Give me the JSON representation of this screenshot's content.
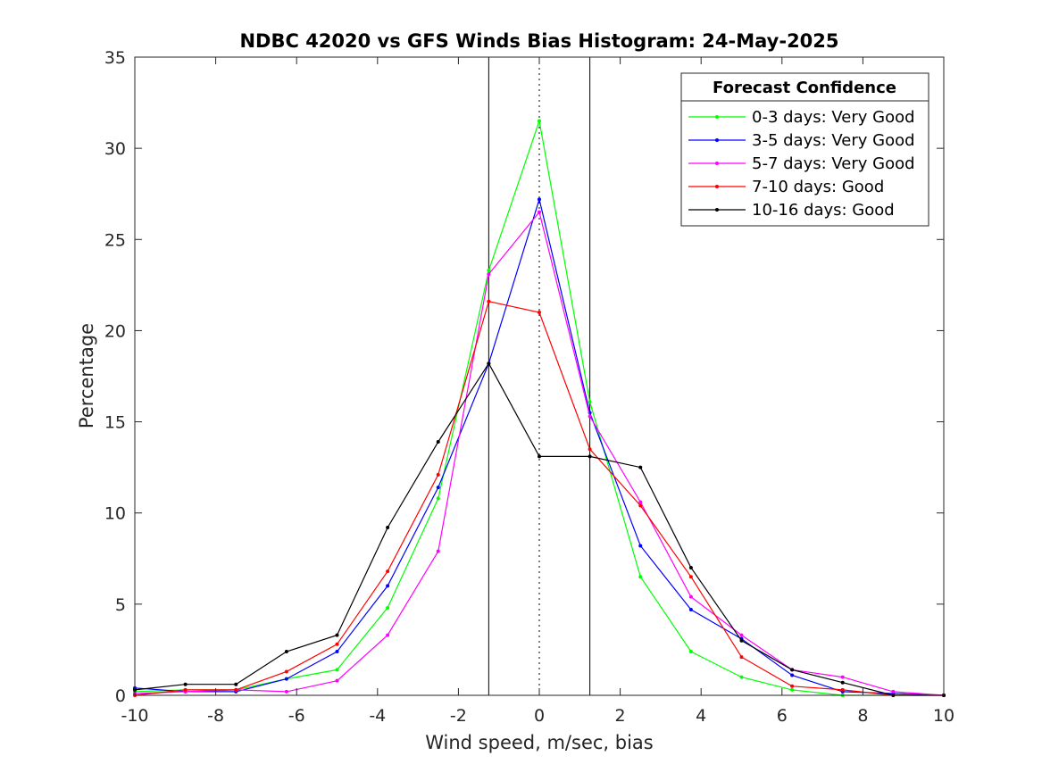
{
  "chart_data": {
    "type": "line",
    "title": "NDBC 42020 vs GFS Winds Bias Histogram: 24-May-2025",
    "xlabel": "Wind speed, m/sec, bias",
    "ylabel": "Percentage",
    "xlim": [
      -10,
      10
    ],
    "ylim": [
      0,
      35
    ],
    "xticks": [
      -10,
      -8,
      -6,
      -4,
      -2,
      0,
      2,
      4,
      6,
      8,
      10
    ],
    "yticks": [
      0,
      5,
      10,
      15,
      20,
      25,
      30,
      35
    ],
    "x": [
      -10,
      -8.75,
      -7.5,
      -6.25,
      -5,
      -3.75,
      -2.5,
      -1.25,
      0,
      1.25,
      2.5,
      3.75,
      5,
      6.25,
      7.5,
      8.75,
      10
    ],
    "series": [
      {
        "name": "0-3 days: Very Good",
        "color": "#00ff00",
        "values": [
          0.2,
          0.3,
          0.3,
          0.9,
          1.4,
          4.8,
          10.8,
          23.3,
          31.5,
          16.1,
          6.5,
          2.4,
          1.0,
          0.3,
          0.0,
          0.0,
          0.0
        ]
      },
      {
        "name": "3-5 days: Very Good",
        "color": "#0000ff",
        "values": [
          0.4,
          0.2,
          0.2,
          0.9,
          2.4,
          6.0,
          11.4,
          18.2,
          27.2,
          15.5,
          8.2,
          4.7,
          3.1,
          1.1,
          0.2,
          0.1,
          0.0
        ]
      },
      {
        "name": "5-7 days: Very Good",
        "color": "#ff00ff",
        "values": [
          0.1,
          0.2,
          0.3,
          0.2,
          0.8,
          3.3,
          7.9,
          23.1,
          26.5,
          15.3,
          10.6,
          5.4,
          3.3,
          1.4,
          1.0,
          0.2,
          0.0
        ]
      },
      {
        "name": "7-10 days: Good",
        "color": "#ff0000",
        "values": [
          0.0,
          0.3,
          0.3,
          1.3,
          2.8,
          6.8,
          12.1,
          21.6,
          21.0,
          13.5,
          10.4,
          6.5,
          2.1,
          0.5,
          0.3,
          0.0,
          0.0
        ]
      },
      {
        "name": "10-16 days: Good",
        "color": "#000000",
        "values": [
          0.3,
          0.6,
          0.6,
          2.4,
          3.3,
          9.2,
          13.9,
          18.2,
          13.1,
          13.1,
          12.5,
          7.0,
          3.0,
          1.4,
          0.7,
          0.0,
          0.0
        ]
      }
    ],
    "vertical_lines": [
      {
        "x": -1.25,
        "style": "solid"
      },
      {
        "x": 0,
        "style": "dotted"
      },
      {
        "x": 1.25,
        "style": "solid"
      }
    ],
    "legend": {
      "title": "Forecast Confidence",
      "placement": "top-right"
    },
    "grid": false
  }
}
